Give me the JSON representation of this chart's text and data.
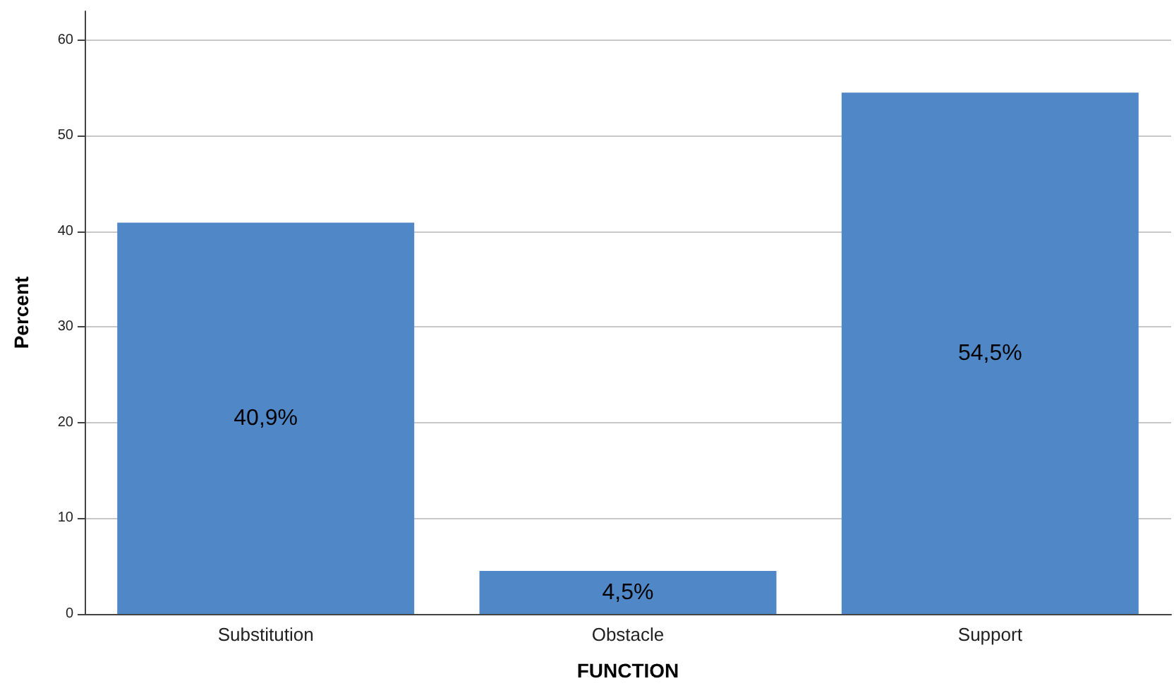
{
  "chart_data": {
    "type": "bar",
    "xlabel": "FUNCTION",
    "ylabel": "Percent",
    "categories": [
      "Substitution",
      "Obstacle",
      "Support"
    ],
    "values": [
      40.9,
      4.5,
      54.5
    ],
    "value_labels": [
      "40,9%",
      "4,5%",
      "54,5%"
    ],
    "color": "#5087c7",
    "ylim": [
      0,
      63
    ],
    "yticks": [
      0,
      10,
      20,
      30,
      40,
      50,
      60
    ],
    "grid": "y"
  }
}
